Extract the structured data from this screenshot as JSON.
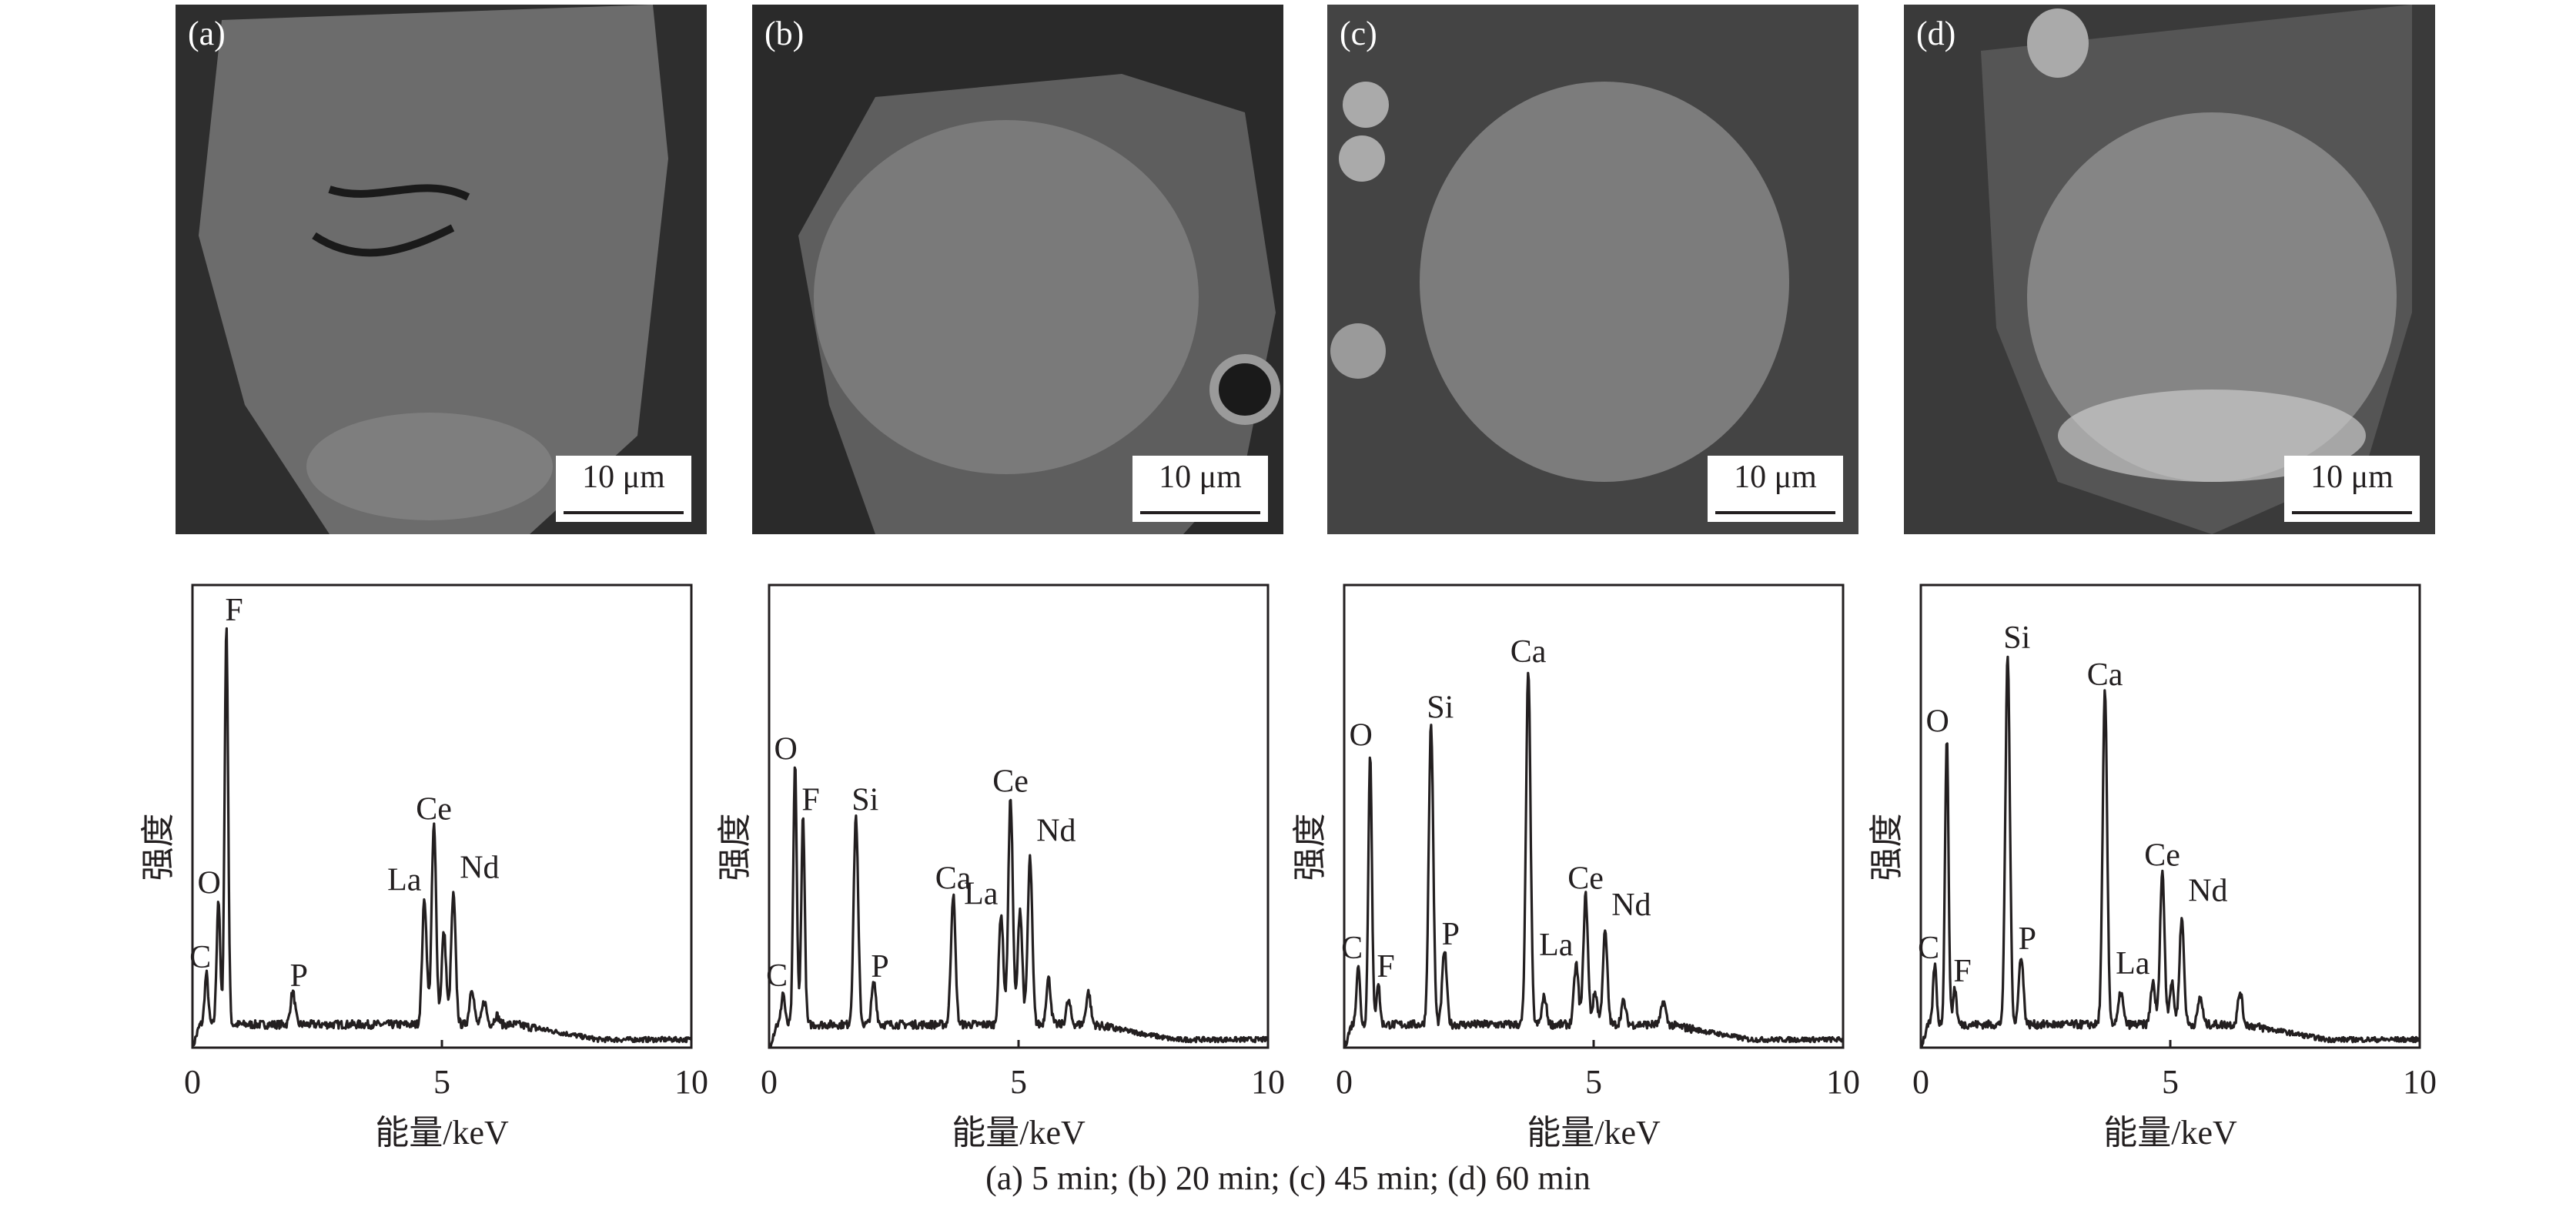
{
  "sem_images": [
    {
      "label": "(a)",
      "scale_bar": "10 μm"
    },
    {
      "label": "(b)",
      "scale_bar": "10 μm"
    },
    {
      "label": "(c)",
      "scale_bar": "10 μm"
    },
    {
      "label": "(d)",
      "scale_bar": "10 μm"
    }
  ],
  "caption": "(a) 5 min; (b) 20 min; (c) 45 min; (d) 60 min",
  "colors": {
    "line": "#231f20",
    "sem_background": "#3a3a3a"
  },
  "chart_data": [
    {
      "type": "line",
      "panel": "(a)",
      "xlabel": "能量/keV",
      "ylabel": "强度",
      "xlim": [
        0,
        10
      ],
      "xticks": [
        "0",
        "5",
        "10"
      ],
      "ylim": [
        0,
        1
      ],
      "grid": false,
      "background": 0.05,
      "peaks": [
        {
          "label": "C",
          "x": 0.28,
          "y": 0.16
        },
        {
          "label": "O",
          "x": 0.52,
          "y": 0.32
        },
        {
          "label": "F",
          "x": 0.68,
          "y": 0.91
        },
        {
          "label": "P",
          "x": 2.01,
          "y": 0.12
        },
        {
          "label": "La",
          "x": 4.65,
          "y": 0.32
        },
        {
          "label": "Ce",
          "x": 4.84,
          "y": 0.48
        },
        {
          "label": "",
          "x": 5.04,
          "y": 0.25
        },
        {
          "label": "Nd",
          "x": 5.23,
          "y": 0.33
        },
        {
          "label": "",
          "x": 5.6,
          "y": 0.13
        },
        {
          "label": "",
          "x": 5.85,
          "y": 0.1
        },
        {
          "label": "",
          "x": 6.1,
          "y": 0.07
        }
      ]
    },
    {
      "type": "line",
      "panel": "(b)",
      "xlabel": "能量/keV",
      "ylabel": "强度",
      "xlim": [
        0,
        10
      ],
      "xticks": [
        "0",
        "5",
        "10"
      ],
      "ylim": [
        0,
        1
      ],
      "grid": false,
      "background": 0.05,
      "peaks": [
        {
          "label": "C",
          "x": 0.28,
          "y": 0.12
        },
        {
          "label": "O",
          "x": 0.52,
          "y": 0.61
        },
        {
          "label": "F",
          "x": 0.68,
          "y": 0.5
        },
        {
          "label": "Si",
          "x": 1.74,
          "y": 0.5
        },
        {
          "label": "P",
          "x": 2.1,
          "y": 0.14
        },
        {
          "label": "Ca",
          "x": 3.69,
          "y": 0.33
        },
        {
          "label": "La",
          "x": 4.65,
          "y": 0.29
        },
        {
          "label": "Ce",
          "x": 4.84,
          "y": 0.54
        },
        {
          "label": "",
          "x": 5.03,
          "y": 0.3
        },
        {
          "label": "Nd",
          "x": 5.23,
          "y": 0.41
        },
        {
          "label": "",
          "x": 5.6,
          "y": 0.15
        },
        {
          "label": "",
          "x": 6.0,
          "y": 0.1
        },
        {
          "label": "",
          "x": 6.4,
          "y": 0.12
        }
      ]
    },
    {
      "type": "line",
      "panel": "(c)",
      "xlabel": "能量/keV",
      "ylabel": "强度",
      "xlim": [
        0,
        10
      ],
      "xticks": [
        "0",
        "5",
        "10"
      ],
      "ylim": [
        0,
        1
      ],
      "grid": false,
      "background": 0.05,
      "peaks": [
        {
          "label": "C",
          "x": 0.28,
          "y": 0.18
        },
        {
          "label": "O",
          "x": 0.52,
          "y": 0.64
        },
        {
          "label": "F",
          "x": 0.68,
          "y": 0.14
        },
        {
          "label": "Si",
          "x": 1.74,
          "y": 0.7
        },
        {
          "label": "P",
          "x": 2.01,
          "y": 0.21
        },
        {
          "label": "Ca",
          "x": 3.69,
          "y": 0.82
        },
        {
          "label": "",
          "x": 4.01,
          "y": 0.11
        },
        {
          "label": "La",
          "x": 4.65,
          "y": 0.18
        },
        {
          "label": "Ce",
          "x": 4.84,
          "y": 0.33
        },
        {
          "label": "",
          "x": 5.03,
          "y": 0.12
        },
        {
          "label": "Nd",
          "x": 5.23,
          "y": 0.25
        },
        {
          "label": "",
          "x": 5.6,
          "y": 0.1
        },
        {
          "label": "",
          "x": 6.4,
          "y": 0.1
        }
      ]
    },
    {
      "type": "line",
      "panel": "(d)",
      "xlabel": "能量/keV",
      "ylabel": "强度",
      "xlim": [
        0,
        10
      ],
      "xticks": [
        "0",
        "5",
        "10"
      ],
      "ylim": [
        0,
        1
      ],
      "grid": false,
      "background": 0.05,
      "peaks": [
        {
          "label": "C",
          "x": 0.28,
          "y": 0.18
        },
        {
          "label": "O",
          "x": 0.52,
          "y": 0.67
        },
        {
          "label": "F",
          "x": 0.68,
          "y": 0.13
        },
        {
          "label": "Si",
          "x": 1.74,
          "y": 0.85
        },
        {
          "label": "P",
          "x": 2.01,
          "y": 0.2
        },
        {
          "label": "Ca",
          "x": 3.69,
          "y": 0.77
        },
        {
          "label": "",
          "x": 4.01,
          "y": 0.12
        },
        {
          "label": "La",
          "x": 4.65,
          "y": 0.14
        },
        {
          "label": "Ce",
          "x": 4.84,
          "y": 0.38
        },
        {
          "label": "",
          "x": 5.03,
          "y": 0.14
        },
        {
          "label": "Nd",
          "x": 5.23,
          "y": 0.28
        },
        {
          "label": "",
          "x": 5.6,
          "y": 0.11
        },
        {
          "label": "",
          "x": 6.4,
          "y": 0.12
        }
      ]
    }
  ]
}
